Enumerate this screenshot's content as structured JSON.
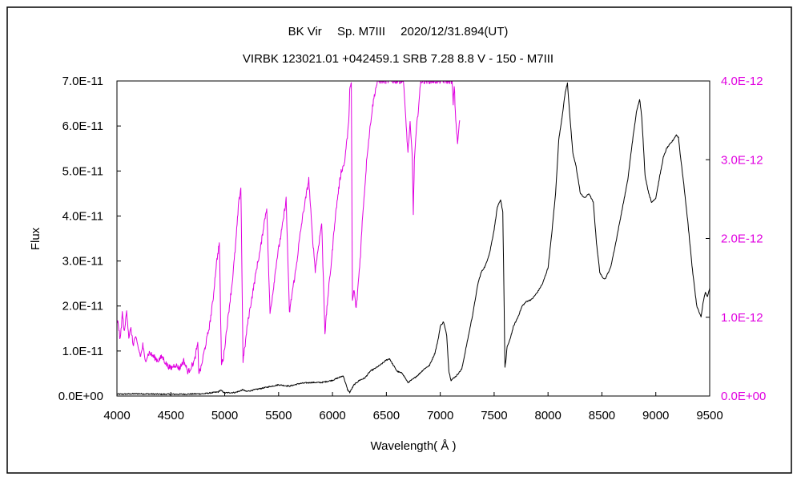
{
  "chart_data": {
    "type": "line",
    "title": "BK Vir　 Sp. M7III　 2020/12/31.894(UT)",
    "subtitle": "VIRBK 123021.01 +042459.1 SRB 7.28 8.8 V - 150 - M7III",
    "xlabel": "Wavelength( Å )",
    "ylabel": "Flux",
    "xlim": [
      4000,
      9500
    ],
    "ylim": [
      0,
      7e-11
    ],
    "y2lim": [
      0,
      4e-12
    ],
    "x_ticks": [
      4000,
      4500,
      5000,
      5500,
      6000,
      6500,
      7000,
      7500,
      8000,
      8500,
      9000,
      9500
    ],
    "y_ticks": [
      0,
      1e-11,
      2e-11,
      3e-11,
      4e-11,
      5e-11,
      6e-11,
      7e-11
    ],
    "y_tick_labels": [
      "0.0E+00",
      "1.0E-11",
      "2.0E-11",
      "3.0E-11",
      "4.0E-11",
      "5.0E-11",
      "6.0E-11",
      "7.0E-11"
    ],
    "y2_ticks": [
      0,
      1e-12,
      2e-12,
      3e-12,
      4e-12
    ],
    "y2_tick_labels": [
      "0.0E+00",
      "1.0E-12",
      "2.0E-12",
      "3.0E-12",
      "4.0E-12"
    ],
    "grid": false,
    "series": [
      {
        "axis": "left",
        "color": "#000000",
        "x": [
          4000,
          4200,
          4400,
          4600,
          4800,
          4940,
          4960,
          5000,
          5100,
          5150,
          5170,
          5200,
          5300,
          5400,
          5500,
          5600,
          5700,
          5800,
          5900,
          6000,
          6100,
          6140,
          6160,
          6200,
          6250,
          6300,
          6350,
          6400,
          6450,
          6500,
          6530,
          6560,
          6600,
          6650,
          6700,
          6750,
          6800,
          6850,
          6900,
          6950,
          6980,
          7000,
          7030,
          7060,
          7080,
          7100,
          7150,
          7200,
          7250,
          7300,
          7350,
          7380,
          7420,
          7460,
          7500,
          7530,
          7560,
          7580,
          7590,
          7600,
          7610,
          7620,
          7640,
          7680,
          7720,
          7760,
          7800,
          7850,
          7900,
          7950,
          8000,
          8030,
          8070,
          8100,
          8130,
          8160,
          8180,
          8200,
          8230,
          8260,
          8300,
          8340,
          8380,
          8420,
          8450,
          8480,
          8500,
          8530,
          8580,
          8620,
          8660,
          8700,
          8740,
          8780,
          8820,
          8850,
          8870,
          8900,
          8930,
          8960,
          9000,
          9030,
          9070,
          9100,
          9150,
          9190,
          9210,
          9230,
          9260,
          9300,
          9340,
          9380,
          9420,
          9440,
          9460,
          9480,
          9500
        ],
        "y": [
          4e-13,
          5e-13,
          4e-13,
          4e-13,
          5e-13,
          9e-13,
          1.3e-12,
          7e-13,
          8e-13,
          1.2e-12,
          1.4e-12,
          1e-12,
          1.5e-12,
          2e-12,
          2.5e-12,
          2.2e-12,
          2.8e-12,
          3e-12,
          3e-12,
          3.5e-12,
          4.5e-12,
          1.4e-12,
          8e-13,
          2.5e-12,
          3.5e-12,
          4e-12,
          5.5e-12,
          6.2e-12,
          7e-12,
          8e-12,
          8.3e-12,
          7e-12,
          5.5e-12,
          5e-12,
          3e-12,
          3.8e-12,
          4.8e-12,
          6e-12,
          6.8e-12,
          9.5e-12,
          1.25e-11,
          1.55e-11,
          1.65e-11,
          1.35e-11,
          5.5e-12,
          3.5e-12,
          4.5e-12,
          6e-12,
          1.2e-11,
          1.8e-11,
          2.5e-11,
          2.75e-11,
          2.9e-11,
          3.2e-11,
          3.7e-11,
          4.2e-11,
          4.35e-11,
          4.1e-11,
          2.5e-11,
          6.5e-12,
          8e-12,
          1.1e-11,
          1.2e-11,
          1.55e-11,
          1.75e-11,
          2e-11,
          2.1e-11,
          2.15e-11,
          2.3e-11,
          2.5e-11,
          2.85e-11,
          3.5e-11,
          4.5e-11,
          5.7e-11,
          6.2e-11,
          6.75e-11,
          6.95e-11,
          6.3e-11,
          5.4e-11,
          5.1e-11,
          4.5e-11,
          4.4e-11,
          4.5e-11,
          4.3e-11,
          3.4e-11,
          2.75e-11,
          2.65e-11,
          2.6e-11,
          2.85e-11,
          3.3e-11,
          3.8e-11,
          4.3e-11,
          4.8e-11,
          5.6e-11,
          6.3e-11,
          6.6e-11,
          6.2e-11,
          4.9e-11,
          4.55e-11,
          4.3e-11,
          4.4e-11,
          4.8e-11,
          5.3e-11,
          5.5e-11,
          5.65e-11,
          5.8e-11,
          5.75e-11,
          5.3e-11,
          4.7e-11,
          3.8e-11,
          2.8e-11,
          2e-11,
          1.75e-11,
          2.1e-11,
          2.3e-11,
          2.2e-11,
          2.4e-11
        ]
      },
      {
        "axis": "right",
        "color": "#E000E0",
        "x": [
          4000,
          4010,
          4030,
          4050,
          4070,
          4090,
          4110,
          4130,
          4150,
          4170,
          4200,
          4220,
          4240,
          4260,
          4300,
          4340,
          4380,
          4420,
          4460,
          4500,
          4540,
          4580,
          4620,
          4660,
          4700,
          4720,
          4740,
          4750,
          4760,
          4780,
          4800,
          4830,
          4860,
          4890,
          4920,
          4950,
          4970,
          4990,
          5010,
          5040,
          5070,
          5100,
          5130,
          5150,
          5170,
          5190,
          5210,
          5240,
          5270,
          5300,
          5330,
          5360,
          5390,
          5420,
          5450,
          5480,
          5510,
          5540,
          5570,
          5600,
          5630,
          5660,
          5690,
          5720,
          5750,
          5780,
          5810,
          5840,
          5870,
          5900,
          5930,
          5960,
          5990,
          6020,
          6050,
          6080,
          6110,
          6130,
          6150,
          6160,
          6175,
          6185,
          6200,
          6220,
          6240,
          6260,
          6280,
          6300,
          6320,
          6340,
          6360,
          6380,
          6400,
          6420,
          6440,
          6460,
          6480,
          6500,
          6520,
          6540,
          6560,
          6580,
          6600,
          6620,
          6640,
          6660,
          6680,
          6700,
          6720,
          6740,
          6750,
          6760,
          6780,
          6800,
          6820,
          6850,
          6880,
          6910,
          6940,
          6970,
          7000,
          7030,
          7060,
          7090,
          7110,
          7120,
          7130,
          7140,
          7160,
          7180
        ],
        "y": [
          9e-13,
          9.5e-13,
          7e-13,
          1.05e-12,
          8e-13,
          1.1e-12,
          7.5e-13,
          8.5e-13,
          6.5e-13,
          7.5e-13,
          6e-13,
          5e-13,
          6.5e-13,
          4.5e-13,
          5.5e-13,
          5e-13,
          4.5e-13,
          5e-13,
          4e-13,
          3.5e-13,
          4e-13,
          3.5e-13,
          4.5e-13,
          3e-13,
          4e-13,
          4.5e-13,
          6e-13,
          6.5e-13,
          3e-13,
          3.5e-13,
          5e-13,
          7e-13,
          9e-13,
          1.2e-12,
          1.65e-12,
          1.95e-12,
          4e-13,
          5e-13,
          7.5e-13,
          1.1e-12,
          1.45e-12,
          1.9e-12,
          2.45e-12,
          2.65e-12,
          4.5e-13,
          6.5e-13,
          9e-13,
          1.15e-12,
          1.4e-12,
          1.65e-12,
          1.85e-12,
          2.15e-12,
          2.4e-12,
          1.05e-12,
          1.35e-12,
          1.7e-12,
          1.95e-12,
          2.2e-12,
          2.5e-12,
          1.05e-12,
          1.35e-12,
          1.6e-12,
          1.95e-12,
          2.25e-12,
          2.5e-12,
          2.75e-12,
          2.1e-12,
          1.6e-12,
          1.9e-12,
          2.2e-12,
          8e-13,
          1.3e-12,
          1.7e-12,
          2.2e-12,
          2.55e-12,
          2.85e-12,
          2.95e-12,
          3.2e-12,
          3.45e-12,
          3.9e-12,
          3.95e-12,
          1.2e-12,
          1.35e-12,
          1.1e-12,
          1.45e-12,
          1.8e-12,
          2.3e-12,
          2.65e-12,
          3.05e-12,
          3.3e-12,
          3.55e-12,
          3.75e-12,
          3.9e-12,
          4e-12,
          4e-12,
          4e-12,
          4e-12,
          4e-12,
          4e-12,
          4e-12,
          4e-12,
          4e-12,
          4e-12,
          4e-12,
          4e-12,
          4e-12,
          3.5e-12,
          3.1e-12,
          3.45e-12,
          3.05e-12,
          2.3e-12,
          3e-12,
          3.4e-12,
          3.7e-12,
          4e-12,
          4e-12,
          4e-12,
          4e-12,
          4e-12,
          4e-12,
          4e-12,
          4e-12,
          4e-12,
          4e-12,
          4e-12,
          3.7e-12,
          3.95e-12,
          3.6e-12,
          3.2e-12,
          3.5e-12
        ]
      }
    ]
  },
  "colors": {
    "left_axis": "#000000",
    "right_axis": "#E000E0",
    "frame": "#000000",
    "background": "#ffffff"
  }
}
